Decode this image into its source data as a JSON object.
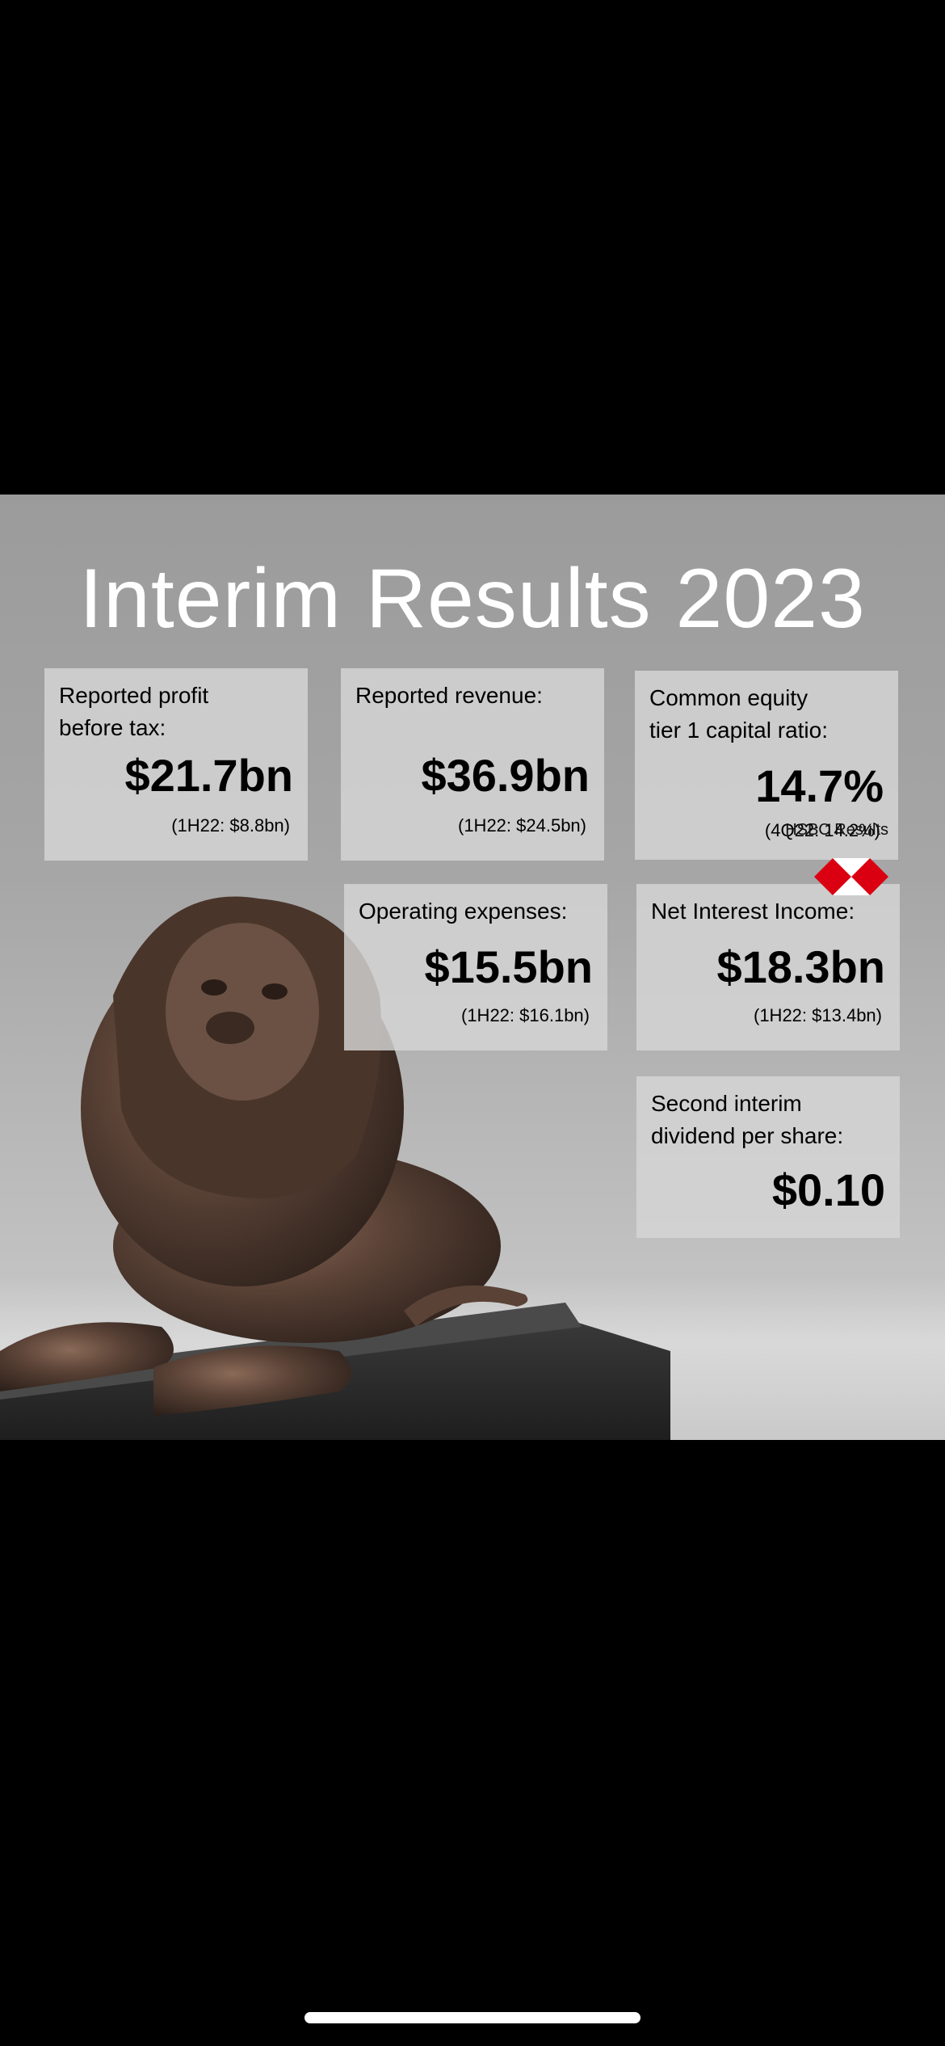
{
  "title": "Interim Results 2023",
  "cards": {
    "profit": {
      "label": "Reported profit\nbefore tax:",
      "value": "$21.7bn",
      "compare": "(1H22: $8.8bn)"
    },
    "revenue": {
      "label": "Reported revenue:",
      "value": "$36.9bn",
      "compare": "(1H22: $24.5bn)"
    },
    "cet1": {
      "label": "Common equity\ntier 1 capital ratio:",
      "value": "14.7%",
      "compare": "(4Q22: 14.2%)"
    },
    "opex": {
      "label": "Operating expenses:",
      "value": "$15.5bn",
      "compare": "(1H22: $16.1bn)"
    },
    "nii": {
      "label": "Net Interest Income:",
      "value": "$18.3bn",
      "compare": "(1H22: $13.4bn)"
    },
    "dividend": {
      "label": "Second interim\ndividend per share:",
      "value": "$0.10"
    }
  },
  "brand": {
    "text": "HSBC Results",
    "logo_color": "#db0011"
  },
  "colors": {
    "background": "#000000",
    "title": "#ffffff"
  }
}
